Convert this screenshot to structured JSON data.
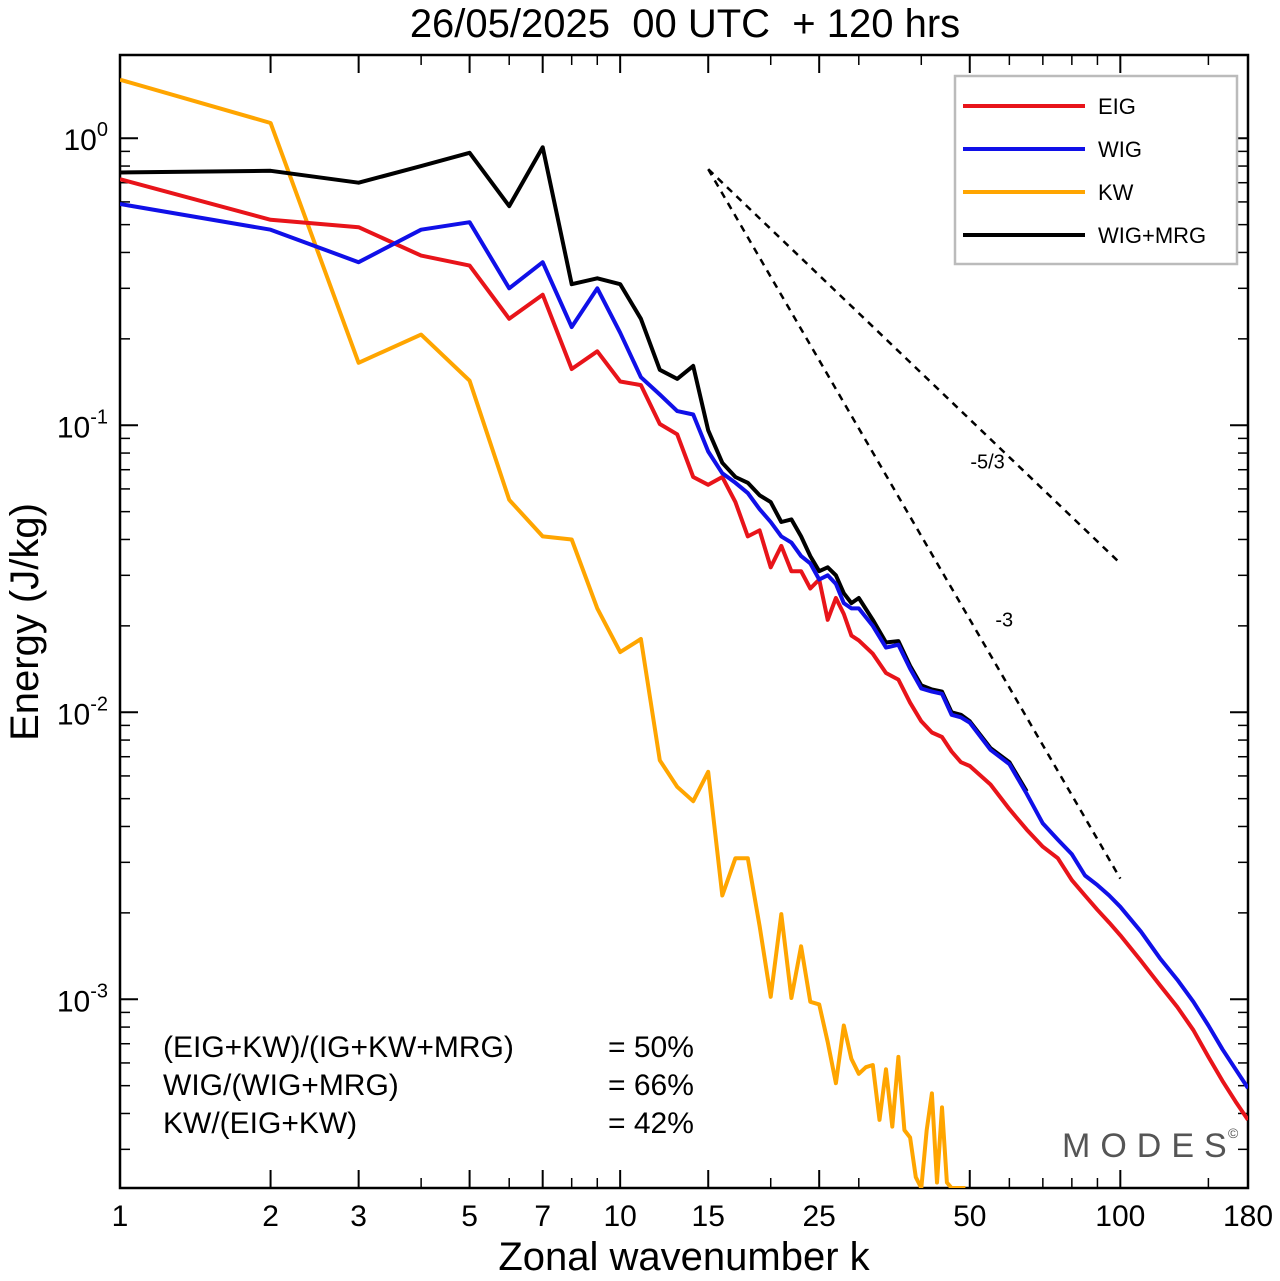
{
  "colors": {
    "EIG": "#e8141a",
    "WIG": "#1010e8",
    "KW": "#ffa500",
    "WIG+MRG": "#000000",
    "reference_lines": "#000000",
    "legend_border": "#bbbbbb"
  },
  "chart_data": {
    "type": "line",
    "title": "26/05/2025  00 UTC  + 120 hrs",
    "xlabel": "Zonal wavenumber k",
    "ylabel": "Energy (J/kg)",
    "xscale": "log",
    "yscale": "log",
    "xlim": [
      1,
      180
    ],
    "ylim": [
      0.00022,
      1.95
    ],
    "x_ticks": [
      1,
      2,
      3,
      5,
      7,
      10,
      15,
      25,
      50,
      100,
      180
    ],
    "x_tick_labels": [
      "1",
      "2",
      "3",
      "5",
      "7",
      "10",
      "15",
      "25",
      "50",
      "100",
      "180"
    ],
    "y_ticks": [
      {
        "value": 1,
        "base": "10",
        "exp": "0"
      },
      {
        "value": 0.1,
        "base": "10",
        "exp": "-1"
      },
      {
        "value": 0.01,
        "base": "10",
        "exp": "-2"
      },
      {
        "value": 0.001,
        "base": "10",
        "exp": "-3"
      }
    ],
    "grid": false,
    "legend_position": "top-right",
    "series": [
      {
        "name": "EIG",
        "color_key": "EIG",
        "points": [
          [
            1,
            0.72
          ],
          [
            2,
            0.52
          ],
          [
            3,
            0.49
          ],
          [
            4,
            0.39
          ],
          [
            5,
            0.36
          ],
          [
            6,
            0.235
          ],
          [
            7,
            0.285
          ],
          [
            8,
            0.157
          ],
          [
            9,
            0.181
          ],
          [
            10,
            0.142
          ],
          [
            11,
            0.138
          ],
          [
            12,
            0.101
          ],
          [
            13,
            0.093
          ],
          [
            14,
            0.066
          ],
          [
            15,
            0.062
          ],
          [
            16,
            0.066
          ],
          [
            17,
            0.054
          ],
          [
            18,
            0.041
          ],
          [
            19,
            0.043
          ],
          [
            20,
            0.032
          ],
          [
            21,
            0.038
          ],
          [
            22,
            0.031
          ],
          [
            23,
            0.031
          ],
          [
            24,
            0.027
          ],
          [
            25,
            0.029
          ],
          [
            26,
            0.021
          ],
          [
            27,
            0.025
          ],
          [
            28,
            0.022
          ],
          [
            29,
            0.0185
          ],
          [
            30,
            0.0178
          ],
          [
            32,
            0.016
          ],
          [
            34,
            0.0137
          ],
          [
            36,
            0.013
          ],
          [
            38,
            0.0108
          ],
          [
            40,
            0.0093
          ],
          [
            42,
            0.0085
          ],
          [
            44,
            0.0082
          ],
          [
            46,
            0.0073
          ],
          [
            48,
            0.0067
          ],
          [
            50,
            0.0065
          ],
          [
            55,
            0.0056
          ],
          [
            60,
            0.0046
          ],
          [
            65,
            0.0039
          ],
          [
            70,
            0.0034
          ],
          [
            75,
            0.0031
          ],
          [
            80,
            0.0026
          ],
          [
            85,
            0.0023
          ],
          [
            90,
            0.00205
          ],
          [
            95,
            0.00185
          ],
          [
            100,
            0.00167
          ],
          [
            110,
            0.00136
          ],
          [
            120,
            0.00112
          ],
          [
            130,
            0.00094
          ],
          [
            140,
            0.00078
          ],
          [
            150,
            0.00063
          ],
          [
            160,
            0.00052
          ],
          [
            170,
            0.00044
          ],
          [
            180,
            0.00038
          ]
        ]
      },
      {
        "name": "WIG",
        "color_key": "WIG",
        "points": [
          [
            1,
            0.59
          ],
          [
            2,
            0.48
          ],
          [
            3,
            0.37
          ],
          [
            4,
            0.48
          ],
          [
            5,
            0.51
          ],
          [
            6,
            0.3
          ],
          [
            7,
            0.37
          ],
          [
            8,
            0.22
          ],
          [
            9,
            0.3
          ],
          [
            10,
            0.21
          ],
          [
            11,
            0.147
          ],
          [
            12,
            0.128
          ],
          [
            13,
            0.112
          ],
          [
            14,
            0.109
          ],
          [
            15,
            0.081
          ],
          [
            16,
            0.068
          ],
          [
            17,
            0.063
          ],
          [
            18,
            0.058
          ],
          [
            19,
            0.051
          ],
          [
            20,
            0.046
          ],
          [
            21,
            0.041
          ],
          [
            22,
            0.039
          ],
          [
            23,
            0.035
          ],
          [
            24,
            0.033
          ],
          [
            25,
            0.029
          ],
          [
            26,
            0.03
          ],
          [
            27,
            0.028
          ],
          [
            28,
            0.024
          ],
          [
            29,
            0.023
          ],
          [
            30,
            0.023
          ],
          [
            32,
            0.02
          ],
          [
            34,
            0.0168
          ],
          [
            36,
            0.0172
          ],
          [
            38,
            0.0142
          ],
          [
            40,
            0.0121
          ],
          [
            42,
            0.0118
          ],
          [
            44,
            0.0116
          ],
          [
            46,
            0.0098
          ],
          [
            48,
            0.0096
          ],
          [
            50,
            0.0092
          ],
          [
            55,
            0.0074
          ],
          [
            60,
            0.0066
          ],
          [
            65,
            0.0052
          ],
          [
            70,
            0.0041
          ],
          [
            75,
            0.0036
          ],
          [
            80,
            0.0032
          ],
          [
            85,
            0.0027
          ],
          [
            90,
            0.0025
          ],
          [
            95,
            0.0023
          ],
          [
            100,
            0.0021
          ],
          [
            110,
            0.00172
          ],
          [
            120,
            0.00139
          ],
          [
            130,
            0.00117
          ],
          [
            140,
            0.00098
          ],
          [
            150,
            0.00081
          ],
          [
            160,
            0.00067
          ],
          [
            170,
            0.00057
          ],
          [
            180,
            0.00049
          ]
        ]
      },
      {
        "name": "KW",
        "color_key": "KW",
        "points": [
          [
            1,
            1.6
          ],
          [
            2,
            1.13
          ],
          [
            3,
            0.165
          ],
          [
            4,
            0.207
          ],
          [
            5,
            0.143
          ],
          [
            6,
            0.055
          ],
          [
            7,
            0.041
          ],
          [
            8,
            0.04
          ],
          [
            9,
            0.023
          ],
          [
            10,
            0.0162
          ],
          [
            11,
            0.018
          ],
          [
            12,
            0.0068
          ],
          [
            13,
            0.0055
          ],
          [
            14,
            0.0049
          ],
          [
            15,
            0.0062
          ],
          [
            16,
            0.0023
          ],
          [
            17,
            0.0031
          ],
          [
            18,
            0.0031
          ],
          [
            19,
            0.0018
          ],
          [
            20,
            0.00102
          ],
          [
            21,
            0.00198
          ],
          [
            22,
            0.00101
          ],
          [
            23,
            0.00153
          ],
          [
            24,
            0.00098
          ],
          [
            25,
            0.00096
          ],
          [
            26,
            0.00071
          ],
          [
            27,
            0.00051
          ],
          [
            28,
            0.00081
          ],
          [
            29,
            0.00062
          ],
          [
            30,
            0.00055
          ],
          [
            31,
            0.00058
          ],
          [
            32,
            0.00059
          ],
          [
            33,
            0.00038
          ],
          [
            34,
            0.00057
          ],
          [
            35,
            0.00036
          ],
          [
            36,
            0.00063
          ],
          [
            37,
            0.00035
          ],
          [
            38,
            0.00033
          ],
          [
            39,
            0.00024
          ],
          [
            40,
            0.00022
          ],
          [
            41,
            0.00035
          ],
          [
            42,
            0.00047
          ],
          [
            43,
            0.00023
          ],
          [
            44,
            0.00042
          ],
          [
            45,
            0.00023
          ],
          [
            46,
            0.00022
          ],
          [
            48,
            0.00022
          ],
          [
            49,
            0.00022
          ]
        ]
      },
      {
        "name": "WIG+MRG",
        "color_key": "WIG+MRG",
        "points": [
          [
            1,
            0.76
          ],
          [
            2,
            0.77
          ],
          [
            3,
            0.7
          ],
          [
            4,
            0.8
          ],
          [
            5,
            0.89
          ],
          [
            6,
            0.58
          ],
          [
            7,
            0.93
          ],
          [
            8,
            0.31
          ],
          [
            9,
            0.325
          ],
          [
            10,
            0.31
          ],
          [
            11,
            0.235
          ],
          [
            12,
            0.156
          ],
          [
            13,
            0.145
          ],
          [
            14,
            0.161
          ],
          [
            15,
            0.096
          ],
          [
            16,
            0.074
          ],
          [
            17,
            0.066
          ],
          [
            18,
            0.063
          ],
          [
            19,
            0.057
          ],
          [
            20,
            0.054
          ],
          [
            21,
            0.046
          ],
          [
            22,
            0.047
          ],
          [
            23,
            0.041
          ],
          [
            24,
            0.035
          ],
          [
            25,
            0.031
          ],
          [
            26,
            0.032
          ],
          [
            27,
            0.03
          ],
          [
            28,
            0.026
          ],
          [
            29,
            0.024
          ],
          [
            30,
            0.025
          ],
          [
            32,
            0.021
          ],
          [
            34,
            0.0175
          ],
          [
            36,
            0.0177
          ],
          [
            38,
            0.0145
          ],
          [
            40,
            0.0124
          ],
          [
            42,
            0.012
          ],
          [
            44,
            0.0118
          ],
          [
            46,
            0.01
          ],
          [
            48,
            0.0098
          ],
          [
            50,
            0.0093
          ],
          [
            55,
            0.0075
          ],
          [
            60,
            0.0067
          ],
          [
            65,
            0.0053
          ]
        ]
      }
    ],
    "reference_lines": [
      {
        "label": "-5/3",
        "slope": -1.6667,
        "x_start": 15,
        "y_start": 0.78,
        "x_end": 100
      },
      {
        "label": "-3",
        "slope": -3,
        "x_start": 15,
        "y_start": 0.78,
        "x_end": 100
      }
    ],
    "annotations": [
      {
        "label": "(EIG+KW)/(IG+KW+MRG)",
        "value": "= 50%"
      },
      {
        "label": "WIG/(WIG+MRG)",
        "value": "= 66%"
      },
      {
        "label": "KW/(EIG+KW)",
        "value": "= 42%"
      }
    ]
  },
  "branding": {
    "text": "MODES",
    "symbol": "©"
  }
}
